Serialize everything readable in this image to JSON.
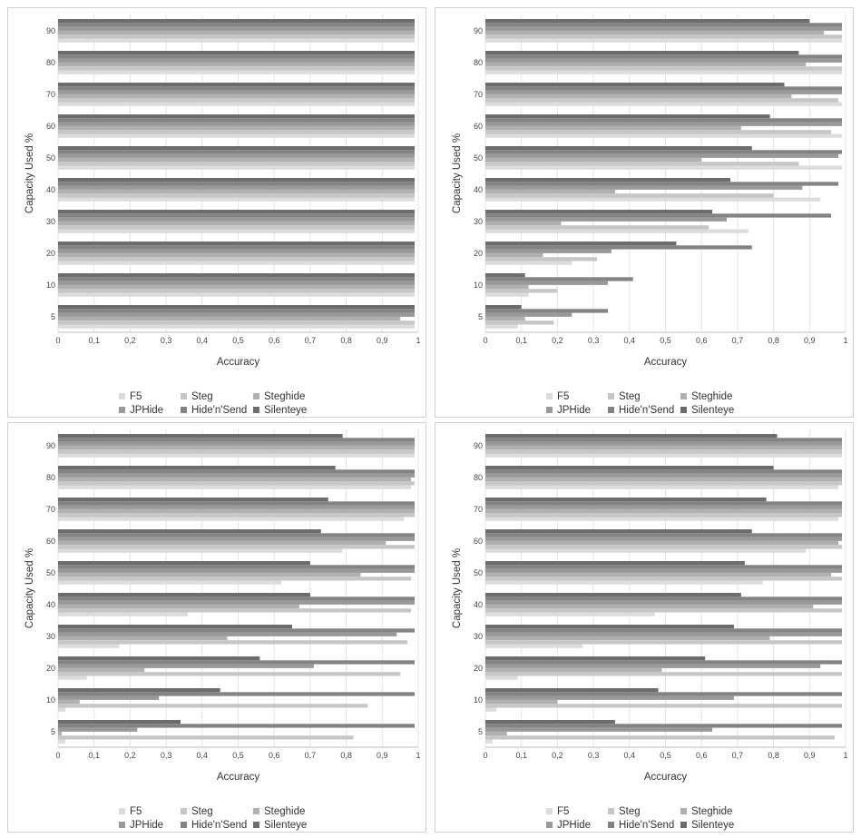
{
  "chart_data": [
    {
      "type": "bar",
      "orientation": "horizontal",
      "ylabel": "Capacity Used %",
      "xlabel": "Accuracy",
      "categories": [
        "5",
        "10",
        "20",
        "30",
        "40",
        "50",
        "60",
        "70",
        "80",
        "90"
      ],
      "xlim": [
        0,
        1
      ],
      "xticks": [
        "0",
        "0,1",
        "0,2",
        "0,3",
        "0,4",
        "0,5",
        "0,6",
        "0,7",
        "0,8",
        "0,9",
        "1"
      ],
      "grid": true,
      "legend_position": "bottom",
      "series": [
        {
          "name": "F5",
          "values": [
            0.99,
            0.99,
            0.99,
            0.99,
            0.99,
            0.99,
            0.99,
            0.99,
            0.99,
            0.99
          ]
        },
        {
          "name": "Steg",
          "values": [
            0.99,
            0.99,
            0.99,
            0.99,
            0.99,
            0.99,
            0.99,
            0.99,
            0.99,
            0.99
          ]
        },
        {
          "name": "Steghide",
          "values": [
            0.95,
            0.99,
            0.99,
            0.99,
            0.99,
            0.99,
            0.99,
            0.99,
            0.99,
            0.99
          ]
        },
        {
          "name": "JPHide",
          "values": [
            0.99,
            0.99,
            0.99,
            0.99,
            0.99,
            0.99,
            0.99,
            0.99,
            0.99,
            0.99
          ]
        },
        {
          "name": "Hide'n'Send",
          "values": [
            0.99,
            0.99,
            0.99,
            0.99,
            0.99,
            0.99,
            0.99,
            0.99,
            0.99,
            0.99
          ]
        },
        {
          "name": "Silenteye",
          "values": [
            0.99,
            0.99,
            0.99,
            0.99,
            0.99,
            0.99,
            0.99,
            0.99,
            0.99,
            0.99
          ]
        }
      ]
    },
    {
      "type": "bar",
      "orientation": "horizontal",
      "ylabel": "Capacity Used %",
      "xlabel": "Accuracy",
      "categories": [
        "5",
        "10",
        "20",
        "30",
        "40",
        "50",
        "60",
        "70",
        "80",
        "90"
      ],
      "xlim": [
        0,
        1
      ],
      "xticks": [
        "0",
        "0,1",
        "0,2",
        "0,3",
        "0,4",
        "0,5",
        "0,6",
        "0,7",
        "0,8",
        "0,9",
        "1"
      ],
      "grid": true,
      "legend_position": "bottom",
      "series": [
        {
          "name": "F5",
          "values": [
            0.09,
            0.12,
            0.24,
            0.73,
            0.93,
            0.99,
            0.99,
            0.99,
            0.99,
            0.99
          ]
        },
        {
          "name": "Steg",
          "values": [
            0.19,
            0.2,
            0.31,
            0.62,
            0.8,
            0.87,
            0.96,
            0.98,
            0.99,
            0.99
          ]
        },
        {
          "name": "Steghide",
          "values": [
            0.11,
            0.12,
            0.16,
            0.21,
            0.36,
            0.6,
            0.71,
            0.85,
            0.89,
            0.94
          ]
        },
        {
          "name": "JPHide",
          "values": [
            0.24,
            0.34,
            0.35,
            0.67,
            0.88,
            0.98,
            0.99,
            0.99,
            0.99,
            0.99
          ]
        },
        {
          "name": "Hide'n'Send",
          "values": [
            0.34,
            0.41,
            0.74,
            0.96,
            0.98,
            0.99,
            0.99,
            0.99,
            0.99,
            0.99
          ]
        },
        {
          "name": "Silenteye",
          "values": [
            0.1,
            0.11,
            0.53,
            0.63,
            0.68,
            0.74,
            0.79,
            0.83,
            0.87,
            0.9
          ]
        }
      ]
    },
    {
      "type": "bar",
      "orientation": "horizontal",
      "ylabel": "Capacity Used %",
      "xlabel": "Accuracy",
      "categories": [
        "5",
        "10",
        "20",
        "30",
        "40",
        "50",
        "60",
        "70",
        "80",
        "90"
      ],
      "xlim": [
        0,
        1
      ],
      "xticks": [
        "0",
        "0,1",
        "0,2",
        "0,3",
        "0,4",
        "0,5",
        "0,6",
        "0,7",
        "0,8",
        "0,9",
        "1"
      ],
      "grid": true,
      "legend_position": "bottom",
      "series": [
        {
          "name": "F5",
          "values": [
            0.02,
            0.02,
            0.08,
            0.17,
            0.36,
            0.62,
            0.79,
            0.96,
            0.98,
            0.99
          ]
        },
        {
          "name": "Steg",
          "values": [
            0.82,
            0.86,
            0.95,
            0.97,
            0.98,
            0.98,
            0.99,
            0.99,
            0.99,
            0.99
          ]
        },
        {
          "name": "Steghide",
          "values": [
            0.01,
            0.06,
            0.24,
            0.47,
            0.67,
            0.84,
            0.91,
            0.99,
            0.98,
            0.99
          ]
        },
        {
          "name": "JPHide",
          "values": [
            0.22,
            0.28,
            0.71,
            0.94,
            0.99,
            0.99,
            0.99,
            0.99,
            0.99,
            0.99
          ]
        },
        {
          "name": "Hide'n'Send",
          "values": [
            0.99,
            0.99,
            0.99,
            0.99,
            0.99,
            0.99,
            0.99,
            0.99,
            0.99,
            0.99
          ]
        },
        {
          "name": "Silenteye",
          "values": [
            0.34,
            0.45,
            0.56,
            0.65,
            0.7,
            0.7,
            0.73,
            0.75,
            0.77,
            0.79
          ]
        }
      ]
    },
    {
      "type": "bar",
      "orientation": "horizontal",
      "ylabel": "Capacity Used %",
      "xlabel": "Accuracy",
      "categories": [
        "5",
        "10",
        "20",
        "30",
        "40",
        "50",
        "60",
        "70",
        "80",
        "90"
      ],
      "xlim": [
        0,
        1
      ],
      "xticks": [
        "0",
        "0,1",
        "0,2",
        "0,3",
        "0,4",
        "0,5",
        "0,6",
        "0,7",
        "0,8",
        "0,9",
        "1"
      ],
      "grid": true,
      "legend_position": "bottom",
      "series": [
        {
          "name": "F5",
          "values": [
            0.02,
            0.03,
            0.09,
            0.27,
            0.47,
            0.77,
            0.89,
            0.98,
            0.98,
            0.99
          ]
        },
        {
          "name": "Steg",
          "values": [
            0.97,
            0.99,
            0.99,
            0.99,
            0.99,
            0.99,
            0.99,
            0.99,
            0.99,
            0.99
          ]
        },
        {
          "name": "Steghide",
          "values": [
            0.06,
            0.2,
            0.49,
            0.79,
            0.91,
            0.96,
            0.98,
            0.99,
            0.99,
            0.99
          ]
        },
        {
          "name": "JPHide",
          "values": [
            0.63,
            0.69,
            0.93,
            0.99,
            0.99,
            0.99,
            0.99,
            0.99,
            0.99,
            0.99
          ]
        },
        {
          "name": "Hide'n'Send",
          "values": [
            0.99,
            0.99,
            0.99,
            0.99,
            0.99,
            0.99,
            0.99,
            0.99,
            0.99,
            0.99
          ]
        },
        {
          "name": "Silenteye",
          "values": [
            0.36,
            0.48,
            0.61,
            0.69,
            0.71,
            0.72,
            0.74,
            0.78,
            0.8,
            0.81
          ]
        }
      ]
    }
  ],
  "series_colors": [
    "#dcdcdc",
    "#c6c6c6",
    "#b0b0b0",
    "#999999",
    "#838383",
    "#6c6c6c"
  ]
}
